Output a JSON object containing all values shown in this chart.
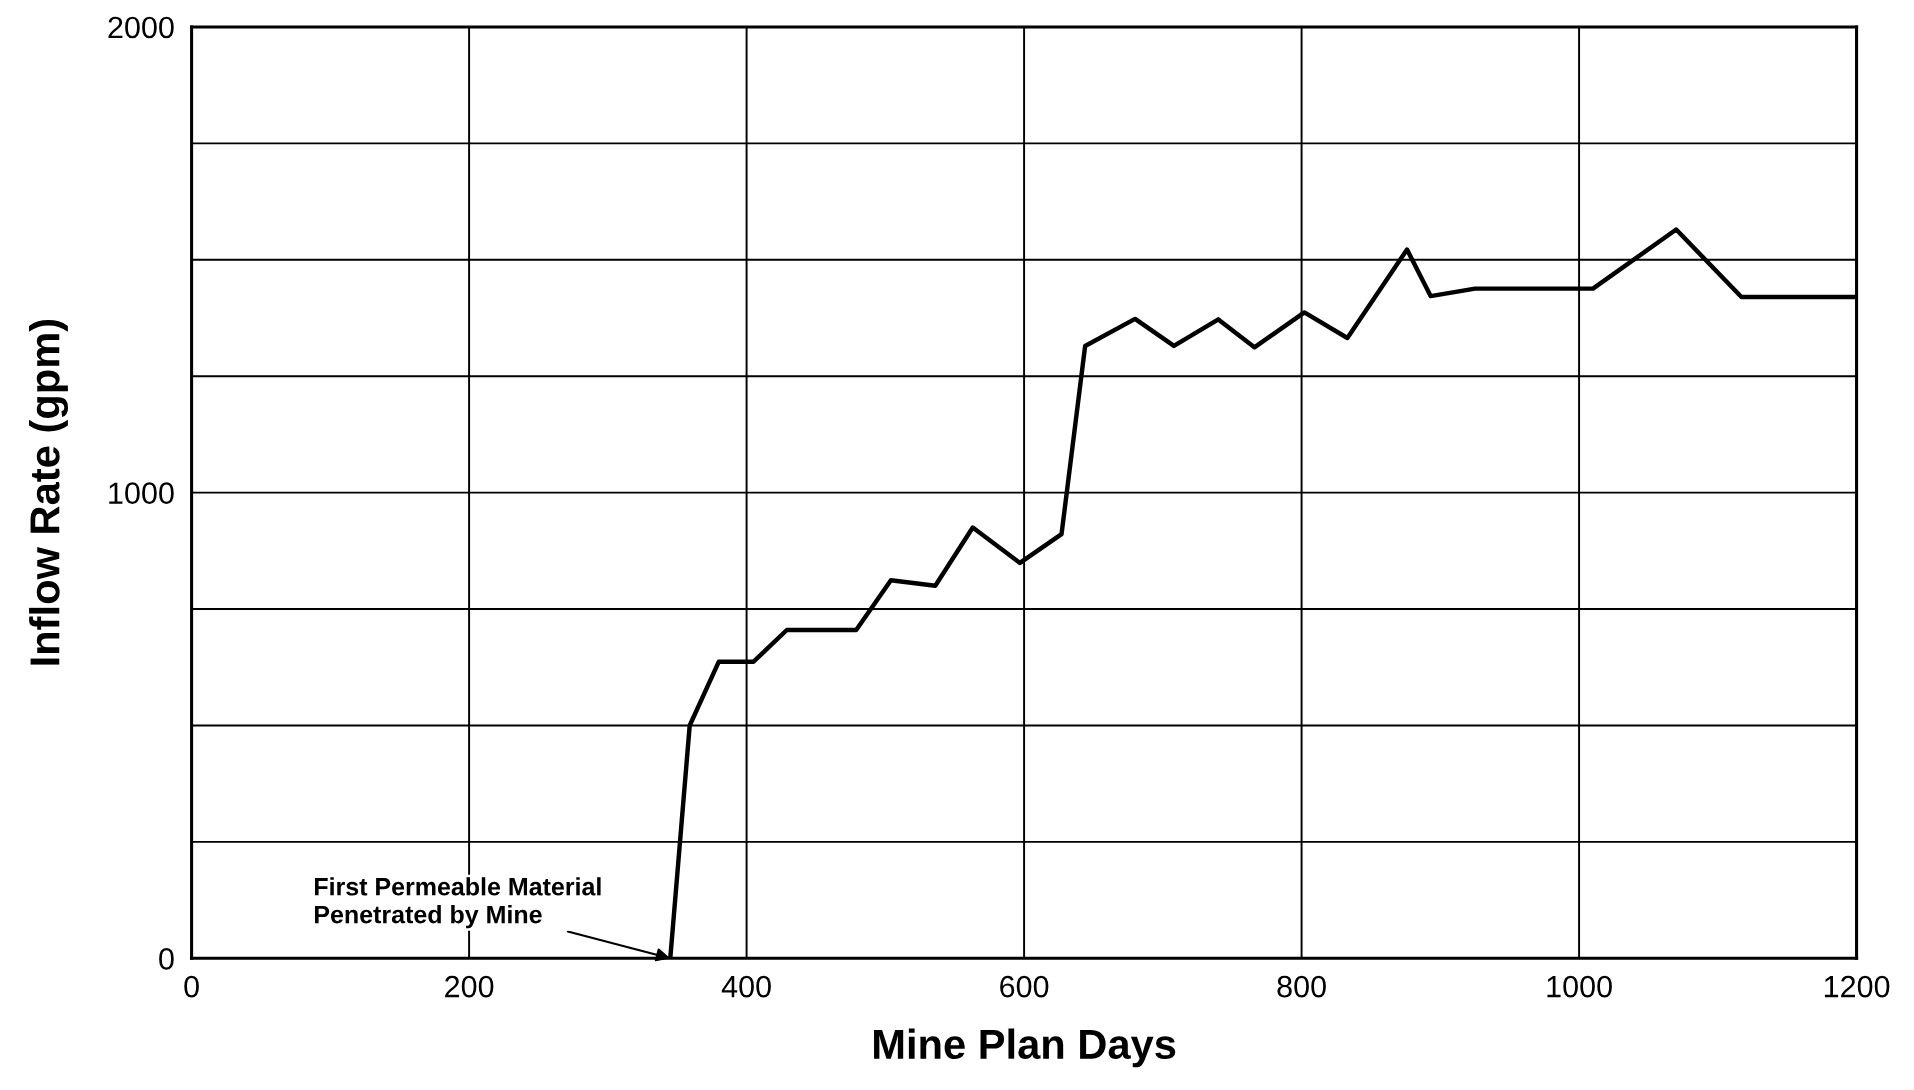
{
  "chart_data": {
    "type": "line",
    "xlabel": "Mine Plan Days",
    "ylabel": "Inflow Rate (gpm)",
    "x": [
      345,
      359,
      380,
      405,
      429,
      479,
      504,
      536,
      563,
      597,
      627,
      644,
      680,
      708,
      740,
      766,
      802,
      833,
      876,
      893,
      925,
      1010,
      1070,
      1117,
      1200
    ],
    "series": [
      {
        "color": "#000000",
        "values": [
          0,
          500,
          637,
          637,
          705,
          705,
          812,
          800,
          925,
          849,
          911,
          1315,
          1373,
          1315,
          1372,
          1312,
          1387,
          1332,
          1522,
          1422,
          1438,
          1438,
          1565,
          1420,
          1420
        ]
      }
    ],
    "xlim": [
      0,
      1200
    ],
    "ylim": [
      0,
      2000
    ],
    "xticks": [
      0,
      200,
      400,
      600,
      800,
      1000,
      1200
    ],
    "yticks": [
      0,
      {
        "value": 250,
        "label": null
      },
      {
        "value": 500,
        "label": null
      },
      {
        "value": 750,
        "label": null
      },
      1000,
      {
        "value": 1250,
        "label": null
      },
      {
        "value": 1500,
        "label": null
      },
      {
        "value": 1750,
        "label": null
      },
      2000
    ],
    "grid": true,
    "line_style": "solid",
    "annotations": [
      {
        "text": "First Permeable Material\nPenetrated by Mine",
        "x": 345,
        "y": 0
      }
    ]
  }
}
